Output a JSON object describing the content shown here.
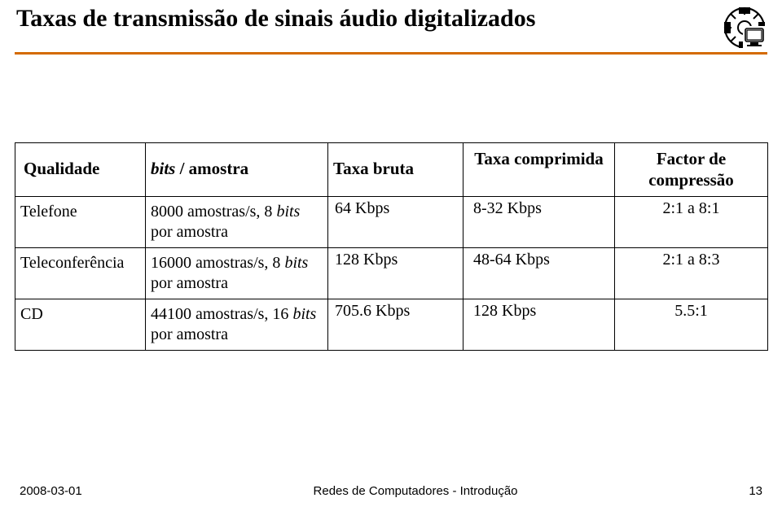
{
  "title": "Taxas de transmissão de sinais áudio digitalizados",
  "title_fontsize": 30,
  "title_color": "#000000",
  "divider_color": "#d46a00",
  "table": {
    "header_fontsize": 21,
    "cell_fontsize": 20,
    "border_color": "#000000",
    "headers": {
      "c0": "Qualidade",
      "c1_pre": "bits",
      "c1_post": " / amostra",
      "c2": "Taxa bruta",
      "c3": "Taxa comprimida",
      "c4": "Factor de compressão"
    },
    "header_align": {
      "c0": "left",
      "c1": "left",
      "c2": "left",
      "c3": "center",
      "c4": "center"
    },
    "header_pad": {
      "c0": "18px 6px 20px 10px",
      "c1": "18px 6px 20px 6px",
      "c2": "18px 6px 20px 6px",
      "c3": "6px 6px 6px 6px",
      "c4": "6px 6px 6px 6px"
    },
    "rows": [
      {
        "c0": "Telefone",
        "c1_pre": "8000 amostras/s, 8 ",
        "c1_italic": "bits",
        "c1_post": " por amostra",
        "c2": "64 Kbps",
        "c3": "8-32 Kbps",
        "c4": "2:1 a 8:1"
      },
      {
        "c0": "Teleconferência",
        "c1_pre": "16000 amostras/s, 8 ",
        "c1_italic": "bits",
        "c1_post": " por amostra",
        "c2": "128 Kbps",
        "c3": "48-64 Kbps",
        "c4": "2:1 a 8:3"
      },
      {
        "c0": "CD",
        "c1_pre": "44100 amostras/s, 16 ",
        "c1_italic": "bits",
        "c1_post": " por amostra",
        "c2": "705.6 Kbps",
        "c3": "128 Kbps",
        "c4": "5.5:1"
      }
    ],
    "cell_pad": {
      "c0": "6px 6px 6px 6px",
      "c1": "6px 6px 6px 6px",
      "c2": "2px 6px 6px 8px",
      "c3": "2px 6px 6px 12px",
      "c4": "2px 6px 6px 6px"
    },
    "cell_align": {
      "c0": "left",
      "c1": "left",
      "c2": "left",
      "c3": "left",
      "c4": "center"
    }
  },
  "footer": {
    "date": "2008-03-01",
    "center": "Redes de Computadores - Introdução",
    "page": "13",
    "fontsize": 15
  },
  "logo_stroke": "#000000"
}
